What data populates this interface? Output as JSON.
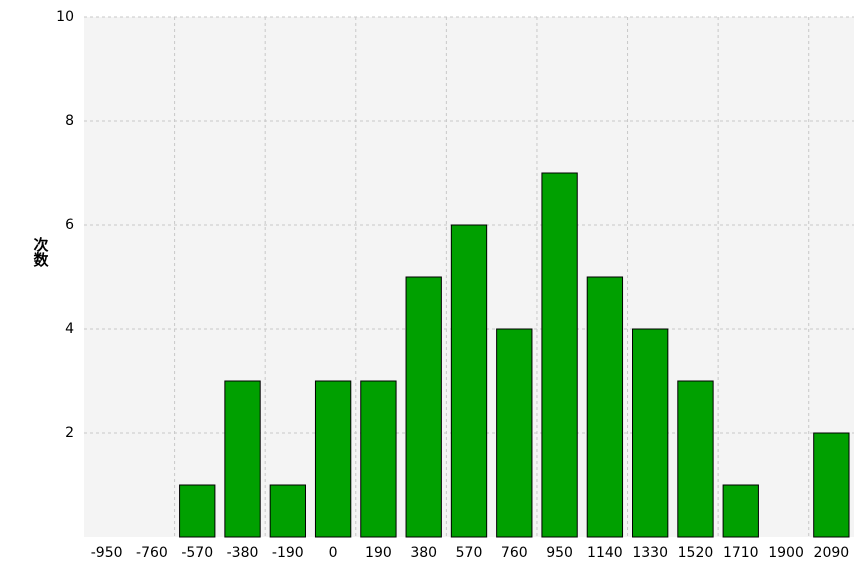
{
  "chart_data": {
    "type": "bar",
    "y_label": "次数",
    "categories": [
      "-950",
      "-760",
      "-570",
      "-380",
      "-190",
      "0",
      "190",
      "380",
      "570",
      "760",
      "950",
      "1140",
      "1330",
      "1520",
      "1710",
      "1900",
      "2090"
    ],
    "values": [
      0,
      0,
      1,
      3,
      1,
      3,
      3,
      5,
      6,
      4,
      7,
      5,
      4,
      3,
      1,
      0,
      2
    ],
    "color": "#00a000",
    "ylim": [
      0,
      10
    ],
    "yticks": [
      2,
      4,
      6,
      8,
      10
    ],
    "grid": true
  }
}
